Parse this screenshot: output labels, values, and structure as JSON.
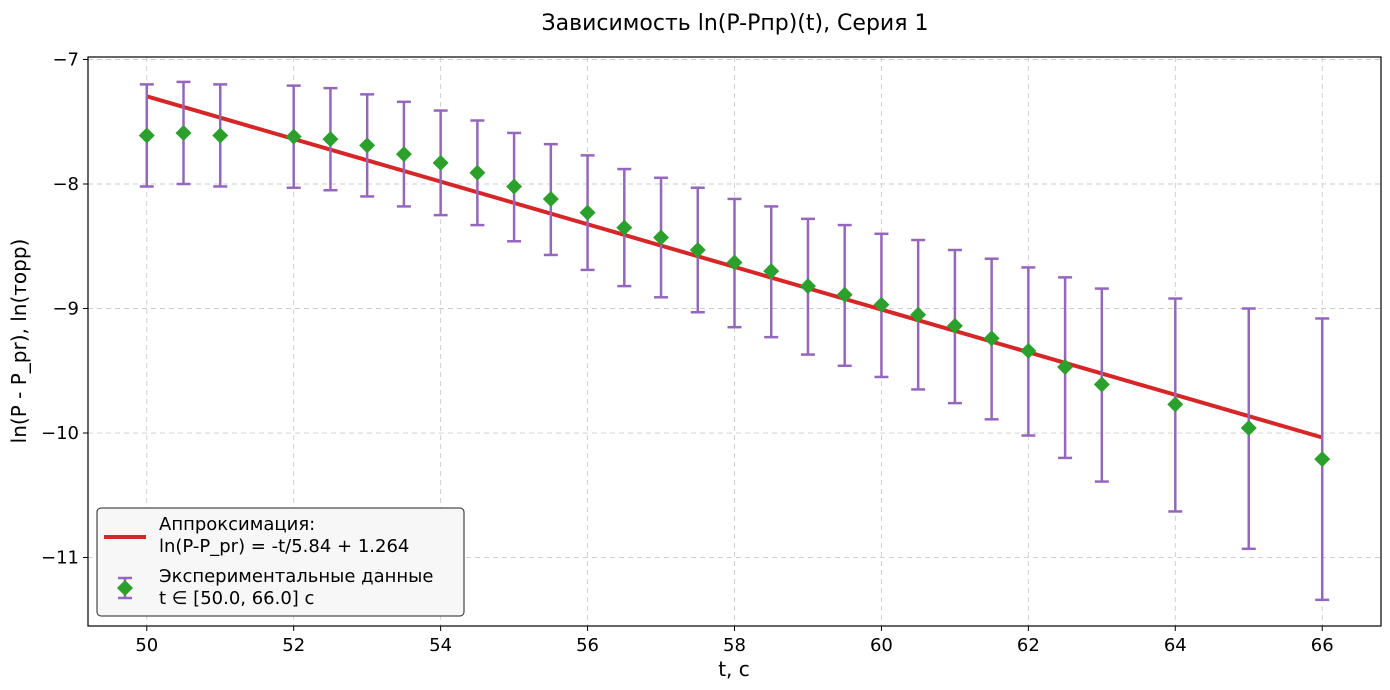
{
  "chart_data": {
    "type": "scatter",
    "title": "Зависимость ln(P-Pпр)(t), Серия 1",
    "xlabel": "t, c",
    "ylabel": "ln(P - P_pr), ln(торр)",
    "xlim": [
      49.2,
      66.8
    ],
    "ylim": [
      -11.55,
      -6.98
    ],
    "xticks": [
      50,
      52,
      54,
      56,
      58,
      60,
      62,
      64,
      66
    ],
    "xtick_labels": [
      "50",
      "52",
      "54",
      "56",
      "58",
      "60",
      "62",
      "64",
      "66"
    ],
    "yticks": [
      -7,
      -8,
      -9,
      -10,
      -11
    ],
    "ytick_labels": [
      "−7",
      "−8",
      "−9",
      "−10",
      "−11"
    ],
    "grid": true,
    "legend_position": "lower-left",
    "colors": {
      "fit": "#d62728",
      "marker": "#2ca02c",
      "errorbar": "#9467bd",
      "grid": "#cccccc"
    },
    "series": [
      {
        "kind": "line",
        "legend_label": "Аппроксимация:\nln(P-P_pr) = -t/5.84 + 1.264",
        "x": [
          50,
          66
        ],
        "y": [
          -7.296,
          -10.036
        ]
      },
      {
        "kind": "errorbar",
        "legend_label": "Экспериментальные данные\nt ∈ [50.0, 66.0] c",
        "x": [
          50,
          50.5,
          51,
          52,
          52.5,
          53,
          53.5,
          54,
          54.5,
          55,
          55.5,
          56,
          56.5,
          57,
          57.5,
          58,
          58.5,
          59,
          59.5,
          60,
          60.5,
          61,
          61.5,
          62,
          62.5,
          63,
          64,
          65,
          66
        ],
        "y": [
          -7.61,
          -7.59,
          -7.61,
          -7.62,
          -7.64,
          -7.69,
          -7.76,
          -7.83,
          -7.91,
          -8.02,
          -8.12,
          -8.23,
          -8.35,
          -8.43,
          -8.53,
          -8.63,
          -8.7,
          -8.82,
          -8.89,
          -8.97,
          -9.05,
          -9.14,
          -9.24,
          -9.34,
          -9.47,
          -9.61,
          -9.77,
          -9.96,
          -10.21
        ],
        "y_err_low": [
          0.41,
          0.41,
          0.41,
          0.41,
          0.41,
          0.41,
          0.42,
          0.42,
          0.42,
          0.44,
          0.45,
          0.46,
          0.47,
          0.48,
          0.5,
          0.52,
          0.53,
          0.55,
          0.57,
          0.58,
          0.6,
          0.62,
          0.65,
          0.68,
          0.73,
          0.78,
          0.86,
          0.97,
          1.13
        ],
        "y_err_high": [
          0.41,
          0.41,
          0.41,
          0.41,
          0.41,
          0.41,
          0.42,
          0.42,
          0.42,
          0.43,
          0.44,
          0.46,
          0.47,
          0.48,
          0.5,
          0.51,
          0.52,
          0.54,
          0.56,
          0.57,
          0.6,
          0.61,
          0.64,
          0.67,
          0.72,
          0.77,
          0.85,
          0.96,
          1.13
        ]
      }
    ]
  }
}
